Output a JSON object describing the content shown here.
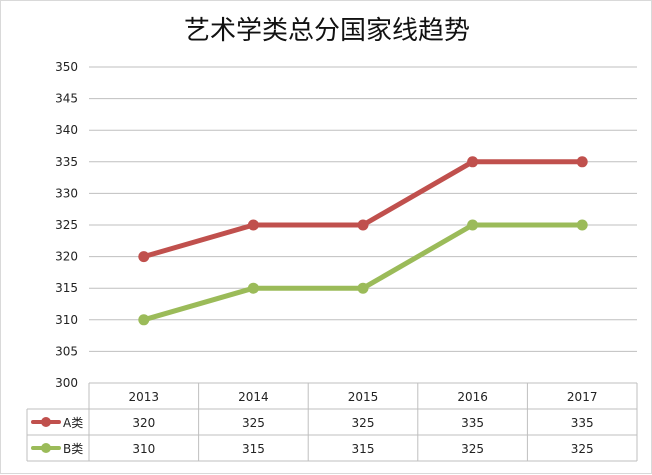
{
  "chart_data": {
    "type": "line",
    "title": "艺术学类总分国家线趋势",
    "categories": [
      "2013",
      "2014",
      "2015",
      "2016",
      "2017"
    ],
    "ylim": [
      300,
      350
    ],
    "yticks": [
      300,
      305,
      310,
      315,
      320,
      325,
      330,
      335,
      340,
      345,
      350
    ],
    "grid": true,
    "legend": "data-table-left",
    "series": [
      {
        "name": "A类",
        "color": "#c0504d",
        "values": [
          320,
          325,
          325,
          335,
          335
        ]
      },
      {
        "name": "B类",
        "color": "#9bbb59",
        "values": [
          310,
          315,
          315,
          325,
          325
        ]
      }
    ]
  }
}
